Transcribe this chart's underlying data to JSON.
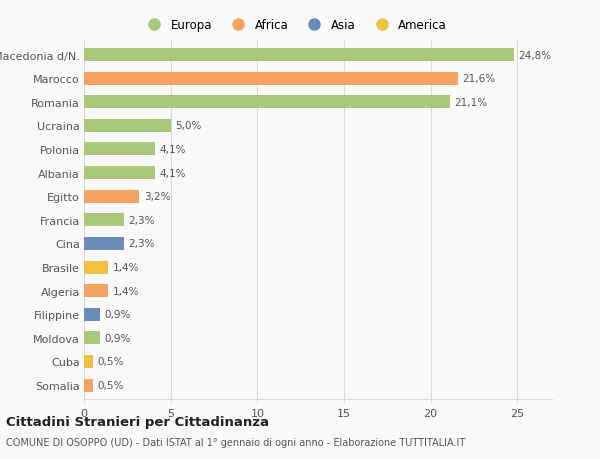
{
  "countries": [
    "Somalia",
    "Cuba",
    "Moldova",
    "Filippine",
    "Algeria",
    "Brasile",
    "Cina",
    "Francia",
    "Egitto",
    "Albania",
    "Polonia",
    "Ucraina",
    "Romania",
    "Marocco",
    "Macedonia d/N."
  ],
  "values": [
    0.5,
    0.5,
    0.9,
    0.9,
    1.4,
    1.4,
    2.3,
    2.3,
    3.2,
    4.1,
    4.1,
    5.0,
    21.1,
    21.6,
    24.8
  ],
  "labels": [
    "0,5%",
    "0,5%",
    "0,9%",
    "0,9%",
    "1,4%",
    "1,4%",
    "2,3%",
    "2,3%",
    "3,2%",
    "4,1%",
    "4,1%",
    "5,0%",
    "21,1%",
    "21,6%",
    "24,8%"
  ],
  "colors": [
    "#f4a460",
    "#f0c040",
    "#a8c87a",
    "#6b8cba",
    "#f4a460",
    "#f0c040",
    "#6b8cba",
    "#a8c87a",
    "#f4a460",
    "#a8c87a",
    "#a8c87a",
    "#a8c87a",
    "#a8c87a",
    "#f4a460",
    "#a8c87a"
  ],
  "legend_labels": [
    "Europa",
    "Africa",
    "Asia",
    "America"
  ],
  "legend_colors": [
    "#a8c87a",
    "#f4a460",
    "#6b8cba",
    "#f0c040"
  ],
  "title": "Cittadini Stranieri per Cittadinanza",
  "subtitle": "COMUNE DI OSOPPO (UD) - Dati ISTAT al 1° gennaio di ogni anno - Elaborazione TUTTITALIA.IT",
  "xlim_max": 27,
  "background_color": "#f9f9f9",
  "grid_color": "#d8d8d8",
  "bar_height": 0.55
}
